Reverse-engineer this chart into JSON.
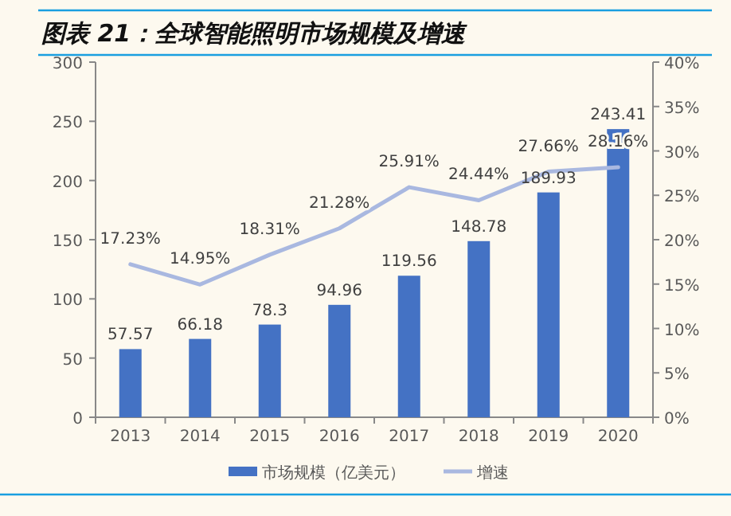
{
  "chart_data": {
    "type": "bar",
    "title": "图表 21：全球智能照明市场规模及增速",
    "categories": [
      "2013",
      "2014",
      "2015",
      "2016",
      "2017",
      "2018",
      "2019",
      "2020"
    ],
    "series": [
      {
        "name": "市场规模（亿美元）",
        "color": "#4472c4",
        "values": [
          57.57,
          66.18,
          78.3,
          94.96,
          119.56,
          148.78,
          189.93,
          243.41
        ],
        "value_labels": [
          "57.57",
          "66.18",
          "78.3",
          "94.96",
          "119.56",
          "148.78",
          "189.93",
          "243.41"
        ]
      },
      {
        "name": "增速",
        "type": "line",
        "axis": "y2",
        "color": "#a9b8e0",
        "values": [
          17.23,
          14.95,
          18.31,
          21.28,
          25.91,
          24.44,
          27.66,
          28.16
        ],
        "value_labels": [
          "17.23%",
          "14.95%",
          "18.31%",
          "21.28%",
          "25.91%",
          "24.44%",
          "27.66%",
          "28.16%"
        ]
      }
    ],
    "ylim": [
      0,
      300
    ],
    "yticks": [
      0,
      50,
      100,
      150,
      200,
      250,
      300
    ],
    "y2lim": [
      0,
      40
    ],
    "y2ticks": [
      {
        "value": 0,
        "label": "0%"
      },
      {
        "value": 5,
        "label": "5%"
      },
      {
        "value": 10,
        "label": "10%"
      },
      {
        "value": 15,
        "label": "15%"
      },
      {
        "value": 20,
        "label": "20%"
      },
      {
        "value": 25,
        "label": "25%"
      },
      {
        "value": 30,
        "label": "30%"
      },
      {
        "value": 35,
        "label": "35%"
      },
      {
        "value": 40,
        "label": "40%"
      }
    ],
    "grid": false,
    "legend": "bottom",
    "marker": "none",
    "line_style": "solid"
  }
}
